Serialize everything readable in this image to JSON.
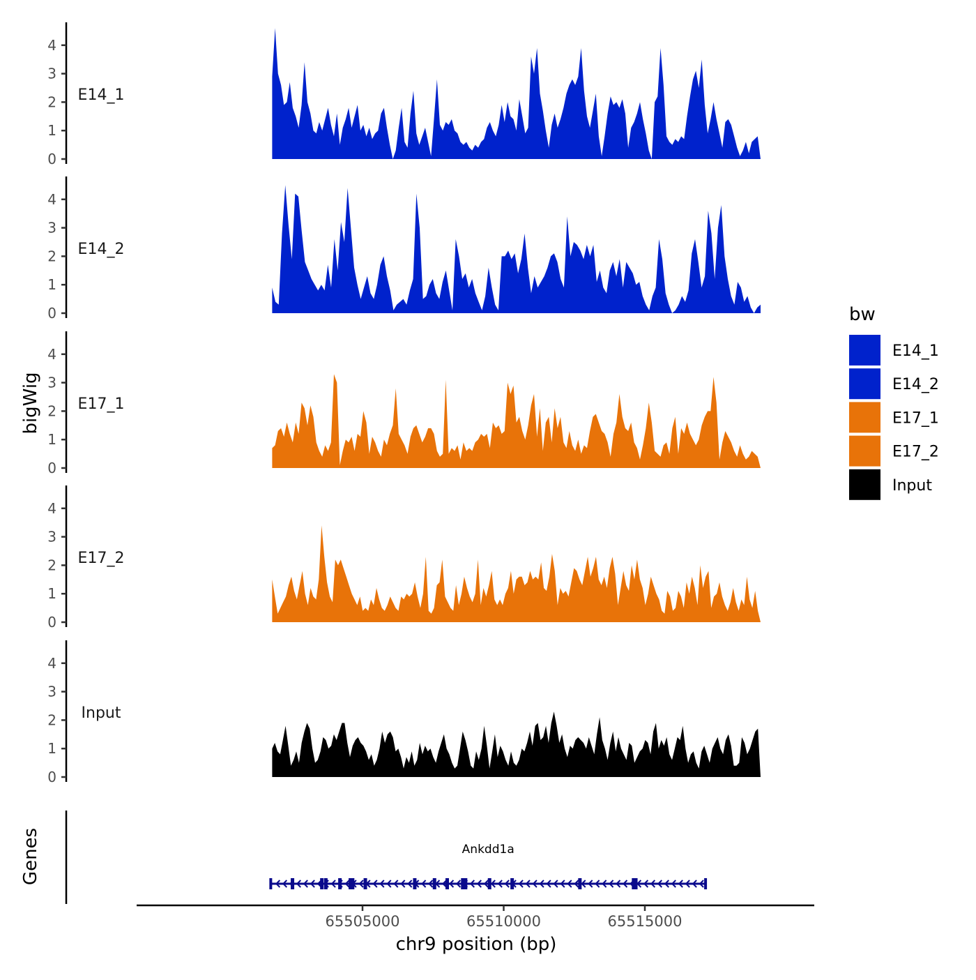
{
  "chart_data": {
    "type": "area",
    "title": "",
    "xlabel": "chr9 position (bp)",
    "ylabel": "bigWig",
    "gene_track_label": "Genes",
    "xlim": [
      65497000,
      65521000
    ],
    "x_range_data": [
      65501800,
      65519100
    ],
    "xticks": [
      65505000,
      65510000,
      65515000
    ],
    "xtick_labels": [
      "65505000",
      "65510000",
      "65515000"
    ],
    "ylim": [
      0,
      4.8
    ],
    "yticks": [
      0,
      1,
      2,
      3,
      4
    ],
    "ytick_labels": [
      "0",
      "1",
      "2",
      "3",
      "4"
    ],
    "grid": false,
    "legend": {
      "title": "bw",
      "position": "right",
      "entries": [
        {
          "label": "E14_1",
          "color": "#0022CC"
        },
        {
          "label": "E14_2",
          "color": "#0022CC"
        },
        {
          "label": "E17_1",
          "color": "#E87309"
        },
        {
          "label": "E17_2",
          "color": "#E87309"
        },
        {
          "label": "Input",
          "color": "#000000"
        }
      ]
    },
    "series": [
      {
        "name": "E14_1",
        "color": "#0022CC",
        "values": [
          2.9,
          4.6,
          3.0,
          2.6,
          1.9,
          2.0,
          2.7,
          1.8,
          1.5,
          1.1,
          1.9,
          3.4,
          2.0,
          1.6,
          1.0,
          0.9,
          1.3,
          1.0,
          1.4,
          1.8,
          1.2,
          0.8,
          1.6,
          0.5,
          1.1,
          1.4,
          1.8,
          1.1,
          1.5,
          1.9,
          1.0,
          1.2,
          0.8,
          1.1,
          0.7,
          0.9,
          1.0,
          1.6,
          1.8,
          1.1,
          0.5,
          0.0,
          0.3,
          1.1,
          1.8,
          0.6,
          0.4,
          1.6,
          2.4,
          0.9,
          0.5,
          0.8,
          1.1,
          0.6,
          0.1,
          1.4,
          2.8,
          1.2,
          1.0,
          1.3,
          1.2,
          1.4,
          1.0,
          0.9,
          0.6,
          0.5,
          0.6,
          0.4,
          0.3,
          0.5,
          0.4,
          0.6,
          0.7,
          1.1,
          1.3,
          1.0,
          0.8,
          1.2,
          1.9,
          1.3,
          2.0,
          1.5,
          1.4,
          1.0,
          2.1,
          1.5,
          0.9,
          1.1,
          3.6,
          3.0,
          3.9,
          2.3,
          1.7,
          1.0,
          0.4,
          1.2,
          1.6,
          1.1,
          1.4,
          1.8,
          2.3,
          2.6,
          2.8,
          2.6,
          2.9,
          3.9,
          2.4,
          1.5,
          1.1,
          1.7,
          2.3,
          0.8,
          0.1,
          0.8,
          1.6,
          2.2,
          1.9,
          2.0,
          1.8,
          2.1,
          1.6,
          0.4,
          1.1,
          1.3,
          1.6,
          2.0,
          1.4,
          0.9,
          0.3,
          0.0,
          2.0,
          2.2,
          3.9,
          2.6,
          0.8,
          0.6,
          0.5,
          0.7,
          0.6,
          0.8,
          0.7,
          1.5,
          2.2,
          2.8,
          3.1,
          2.5,
          3.5,
          1.9,
          0.9,
          1.4,
          2.0,
          1.4,
          0.9,
          0.4,
          1.3,
          1.4,
          1.2,
          0.8,
          0.4,
          0.1,
          0.3,
          0.6,
          0.2,
          0.6,
          0.7,
          0.8,
          0.0
        ]
      },
      {
        "name": "E14_2",
        "color": "#0022CC",
        "values": [
          0.9,
          0.4,
          0.3,
          2.8,
          4.5,
          3.1,
          1.9,
          4.2,
          4.1,
          2.9,
          1.8,
          1.5,
          1.2,
          1.0,
          0.8,
          1.0,
          0.8,
          1.7,
          0.9,
          2.6,
          1.5,
          3.2,
          2.5,
          4.4,
          3.0,
          1.6,
          1.0,
          0.5,
          0.9,
          1.3,
          0.7,
          0.5,
          1.0,
          1.7,
          2.0,
          1.3,
          0.8,
          0.1,
          0.3,
          0.4,
          0.5,
          0.3,
          0.8,
          1.2,
          4.2,
          3.0,
          0.5,
          0.6,
          1.0,
          1.2,
          0.7,
          0.5,
          1.1,
          1.5,
          0.8,
          0.1,
          2.6,
          2.0,
          1.2,
          1.4,
          0.9,
          1.2,
          0.7,
          0.4,
          0.1,
          0.6,
          1.6,
          0.9,
          0.3,
          0.1,
          2.0,
          2.0,
          2.2,
          1.9,
          2.1,
          1.4,
          1.9,
          2.8,
          1.6,
          0.7,
          1.3,
          0.9,
          1.1,
          1.3,
          1.6,
          2.0,
          2.1,
          1.8,
          1.2,
          0.9,
          3.4,
          2.0,
          2.5,
          2.4,
          2.2,
          1.9,
          2.4,
          2.0,
          2.4,
          1.1,
          1.5,
          0.9,
          0.7,
          1.5,
          1.8,
          1.3,
          1.9,
          0.9,
          1.8,
          1.6,
          1.4,
          1.0,
          1.1,
          0.6,
          0.3,
          0.1,
          0.6,
          0.9,
          2.6,
          1.9,
          0.7,
          0.3,
          0.0,
          0.1,
          0.3,
          0.6,
          0.4,
          0.8,
          2.1,
          2.6,
          1.8,
          0.9,
          1.3,
          3.6,
          2.8,
          1.2,
          3.0,
          3.8,
          2.0,
          1.2,
          0.6,
          0.3,
          1.1,
          0.9,
          0.4,
          0.6,
          0.2,
          0.0,
          0.2,
          0.3
        ]
      },
      {
        "name": "E17_1",
        "color": "#E87309",
        "values": [
          0.7,
          0.8,
          1.3,
          1.4,
          1.1,
          1.6,
          1.2,
          0.9,
          1.6,
          1.2,
          2.3,
          2.1,
          1.5,
          2.2,
          1.8,
          0.9,
          0.6,
          0.4,
          0.8,
          0.6,
          0.9,
          3.3,
          3.0,
          0.1,
          0.6,
          1.0,
          0.9,
          1.1,
          0.6,
          1.2,
          1.1,
          2.0,
          1.6,
          0.5,
          1.1,
          0.9,
          0.6,
          0.4,
          1.0,
          0.8,
          1.2,
          1.5,
          2.8,
          1.2,
          1.0,
          0.8,
          0.5,
          1.1,
          1.4,
          1.5,
          1.2,
          0.9,
          1.1,
          1.4,
          1.4,
          1.2,
          0.6,
          0.4,
          0.5,
          3.1,
          0.5,
          0.7,
          0.6,
          0.8,
          0.3,
          0.9,
          0.6,
          0.7,
          0.6,
          0.9,
          1.0,
          1.2,
          1.1,
          1.2,
          0.7,
          1.6,
          1.4,
          1.5,
          1.2,
          1.3,
          3.0,
          2.6,
          2.9,
          1.6,
          1.8,
          1.3,
          1.0,
          1.5,
          2.2,
          2.6,
          1.1,
          2.1,
          0.6,
          1.6,
          1.8,
          0.9,
          2.1,
          1.4,
          1.8,
          0.9,
          0.7,
          1.3,
          0.8,
          0.6,
          1.0,
          0.5,
          0.8,
          0.7,
          1.3,
          1.8,
          1.9,
          1.6,
          1.3,
          1.2,
          0.9,
          0.4,
          1.2,
          1.6,
          2.6,
          1.8,
          1.4,
          1.3,
          1.6,
          0.9,
          0.7,
          0.3,
          0.8,
          1.4,
          2.3,
          1.6,
          0.6,
          0.5,
          0.4,
          0.8,
          0.9,
          0.5,
          1.4,
          1.8,
          0.5,
          1.4,
          1.2,
          1.6,
          1.2,
          1.0,
          0.8,
          1.0,
          1.5,
          1.8,
          2.0,
          2.0,
          3.2,
          2.3,
          0.3,
          0.9,
          1.3,
          1.1,
          0.9,
          0.6,
          0.4,
          0.8,
          0.5,
          0.3,
          0.4,
          0.6,
          0.5,
          0.4,
          0.0
        ]
      },
      {
        "name": "E17_2",
        "color": "#E87309",
        "values": [
          1.5,
          0.9,
          0.3,
          0.5,
          0.7,
          0.9,
          1.3,
          1.6,
          1.1,
          0.8,
          1.3,
          1.8,
          1.0,
          0.6,
          1.2,
          0.9,
          0.8,
          1.5,
          3.4,
          2.3,
          1.4,
          0.9,
          0.7,
          2.2,
          2.0,
          2.2,
          1.9,
          1.6,
          1.3,
          1.0,
          0.8,
          0.6,
          0.9,
          0.4,
          0.5,
          0.4,
          0.8,
          0.6,
          1.2,
          0.8,
          0.5,
          0.4,
          0.6,
          0.9,
          0.7,
          0.5,
          0.4,
          0.9,
          0.8,
          1.0,
          0.9,
          1.0,
          1.4,
          0.9,
          0.5,
          1.0,
          2.3,
          0.4,
          0.3,
          0.5,
          1.3,
          1.4,
          2.2,
          0.9,
          0.7,
          0.5,
          0.4,
          1.3,
          0.6,
          1.0,
          1.6,
          1.2,
          0.9,
          0.7,
          1.0,
          2.2,
          0.6,
          1.2,
          0.9,
          1.3,
          1.8,
          0.8,
          0.6,
          0.8,
          0.6,
          1.0,
          1.2,
          1.8,
          1.0,
          1.5,
          1.6,
          1.6,
          1.3,
          1.4,
          1.8,
          1.5,
          1.6,
          1.5,
          2.1,
          1.2,
          1.1,
          1.6,
          2.4,
          1.8,
          0.6,
          1.2,
          1.0,
          1.1,
          0.9,
          1.4,
          1.9,
          1.8,
          1.5,
          1.3,
          1.8,
          2.3,
          1.6,
          1.9,
          2.3,
          1.5,
          1.3,
          1.6,
          1.2,
          1.9,
          2.3,
          1.7,
          0.6,
          1.2,
          1.8,
          1.3,
          1.1,
          2.0,
          1.5,
          2.2,
          1.5,
          1.2,
          0.6,
          1.0,
          1.6,
          1.3,
          1.0,
          0.8,
          0.4,
          0.3,
          1.1,
          0.9,
          0.4,
          0.5,
          1.1,
          0.9,
          0.5,
          1.4,
          1.0,
          1.6,
          1.2,
          0.6,
          2.0,
          1.2,
          1.6,
          1.8,
          0.5,
          0.9,
          1.0,
          1.4,
          0.9,
          0.6,
          0.4,
          0.7,
          1.2,
          0.7,
          0.4,
          0.8,
          0.6,
          1.6,
          0.8,
          0.5,
          1.1,
          0.4,
          0.0
        ]
      },
      {
        "name": "Input",
        "color": "#000000",
        "values": [
          1.0,
          1.2,
          0.9,
          0.8,
          1.3,
          1.8,
          1.1,
          0.4,
          0.6,
          0.9,
          0.5,
          1.2,
          1.6,
          1.9,
          1.7,
          1.0,
          0.5,
          0.6,
          0.9,
          1.4,
          1.3,
          1.0,
          1.1,
          1.5,
          1.3,
          1.6,
          1.9,
          1.9,
          1.2,
          0.7,
          1.1,
          1.3,
          1.4,
          1.2,
          1.1,
          0.9,
          0.6,
          0.8,
          0.4,
          0.6,
          1.0,
          1.6,
          1.2,
          1.5,
          1.6,
          1.4,
          0.9,
          1.0,
          0.7,
          0.3,
          0.7,
          0.5,
          0.9,
          0.4,
          0.6,
          1.2,
          0.8,
          1.1,
          0.9,
          1.0,
          0.7,
          0.5,
          0.9,
          1.2,
          1.5,
          1.0,
          0.8,
          0.5,
          0.3,
          0.4,
          1.0,
          1.6,
          1.3,
          0.9,
          0.4,
          0.3,
          0.9,
          0.6,
          1.0,
          1.8,
          1.1,
          0.3,
          0.9,
          1.5,
          0.7,
          1.1,
          0.9,
          0.6,
          0.4,
          0.9,
          0.5,
          0.4,
          0.6,
          1.0,
          0.9,
          1.2,
          1.6,
          1.1,
          1.8,
          1.9,
          1.3,
          1.4,
          1.8,
          1.2,
          1.9,
          2.3,
          1.8,
          1.2,
          1.5,
          1.0,
          0.7,
          1.1,
          1.0,
          1.3,
          1.4,
          1.3,
          1.2,
          1.0,
          1.4,
          1.1,
          0.8,
          1.5,
          2.1,
          1.3,
          1.0,
          0.6,
          1.2,
          1.6,
          0.9,
          1.4,
          1.0,
          0.8,
          0.6,
          1.2,
          1.1,
          0.5,
          0.7,
          0.9,
          1.0,
          1.3,
          1.2,
          0.8,
          1.6,
          1.9,
          1.0,
          1.3,
          1.1,
          1.4,
          0.8,
          0.6,
          1.0,
          1.4,
          1.3,
          1.8,
          1.0,
          0.5,
          0.8,
          0.9,
          0.5,
          0.3,
          0.9,
          1.1,
          0.8,
          0.5,
          1.0,
          1.2,
          1.4,
          1.0,
          0.8,
          1.3,
          1.5,
          1.1,
          0.4,
          0.4,
          0.5,
          1.4,
          1.2,
          0.8,
          1.0,
          1.3,
          1.6,
          1.7,
          0.0
        ]
      }
    ],
    "gene": {
      "name": "Ankdd1a",
      "start": 65501750,
      "end": 65517150,
      "strand": "-",
      "color": "#0A0A8C",
      "exons": [
        65501750,
        65502520,
        65503560,
        65503700,
        65504200,
        65504570,
        65504650,
        65505100,
        65506850,
        65507550,
        65508000,
        65508550,
        65508650,
        65509500,
        65510300,
        65512700,
        65514600,
        65514680,
        65517150
      ]
    }
  }
}
